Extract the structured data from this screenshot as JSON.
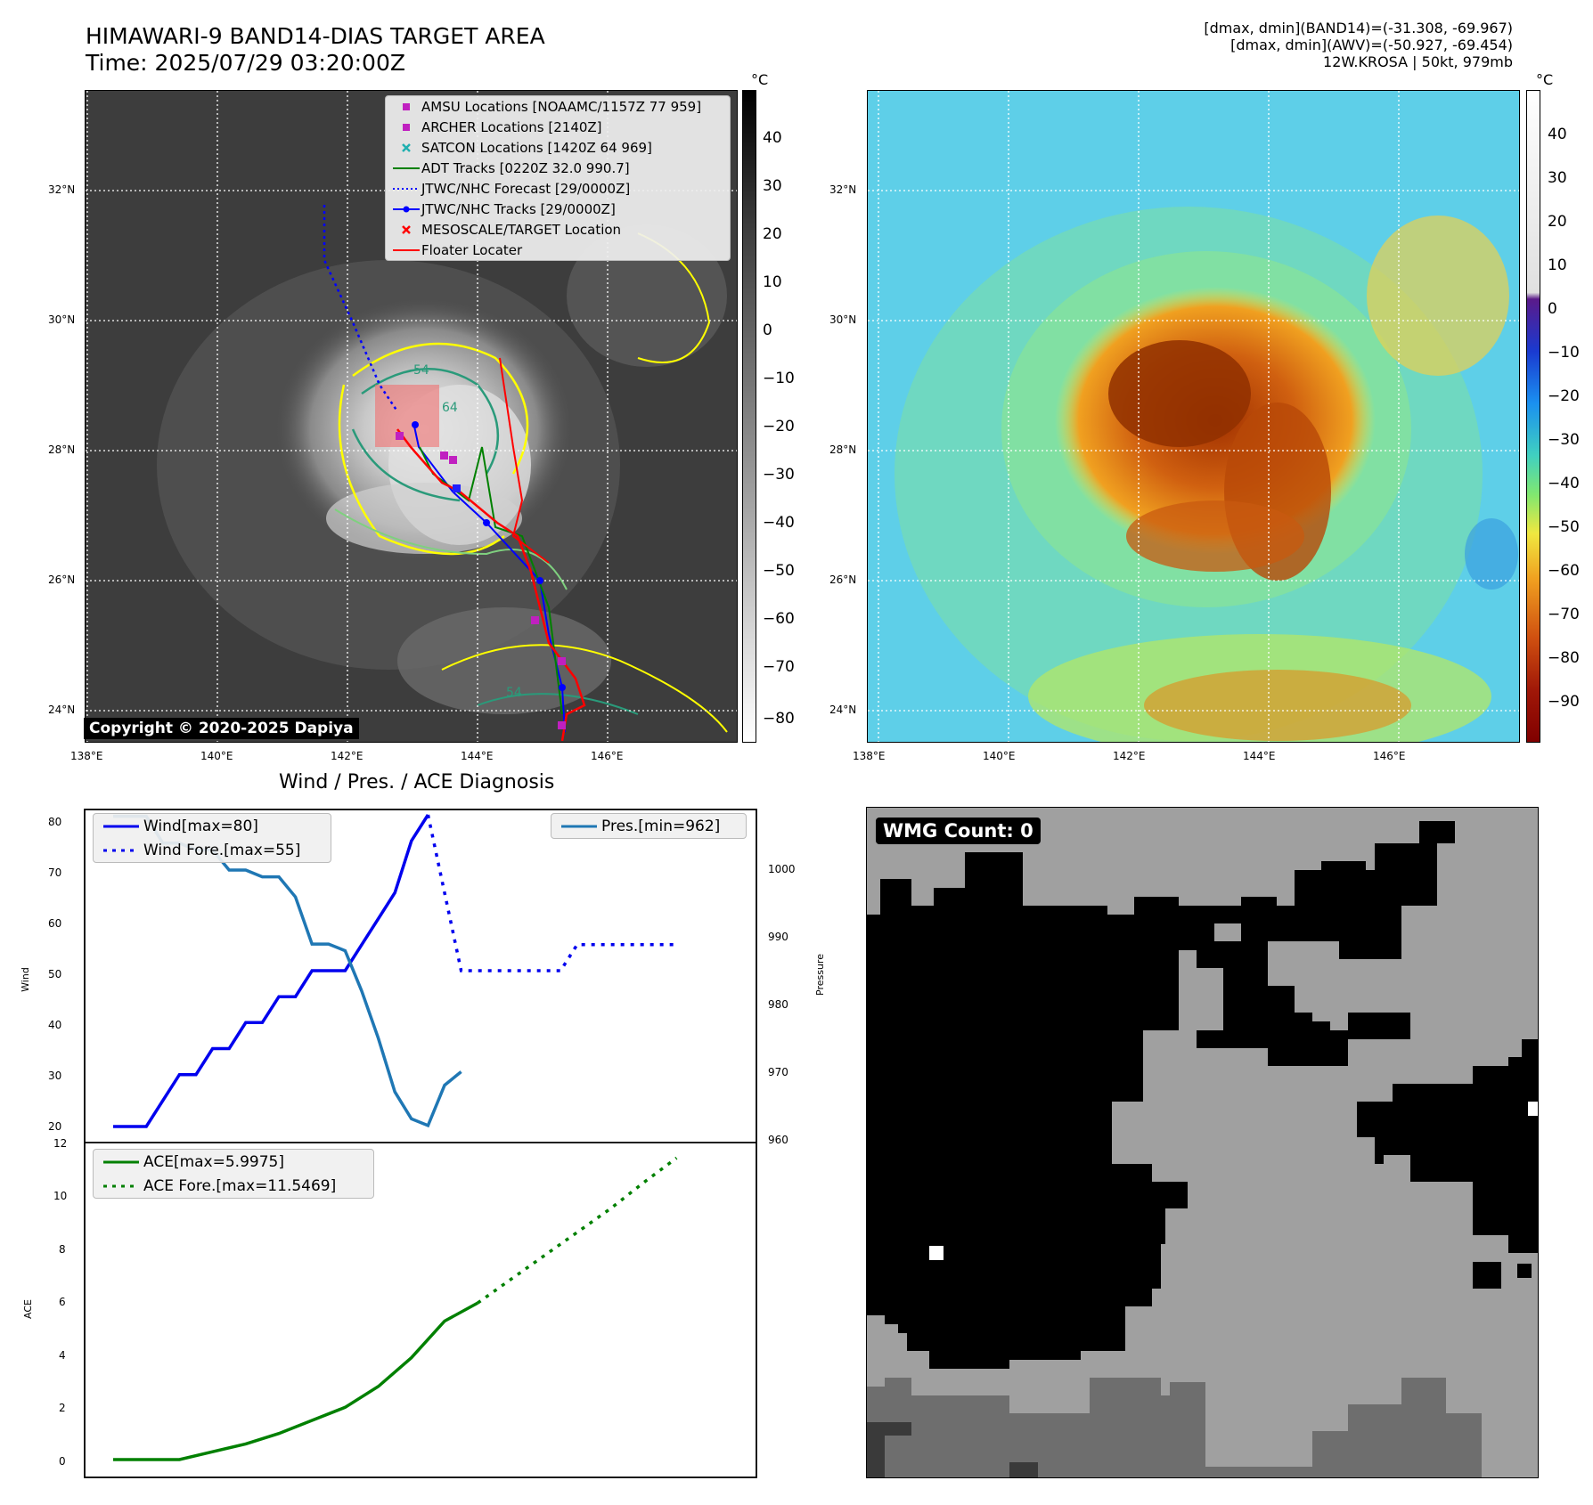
{
  "header": {
    "title_line1": "HIMAWARI-9 BAND14-DIAS TARGET AREA",
    "title_line2": "Time: 2025/07/29 03:20:00Z",
    "info_line1": "[dmax, dmin](BAND14)=(-31.308, -69.967)",
    "info_line2": "[dmax, dmin](AWV)=(-50.927, -69.454)",
    "info_line3": "12W.KROSA | 50kt, 979mb"
  },
  "map": {
    "lat_labels": [
      "32°N",
      "30°N",
      "28°N",
      "26°N",
      "24°N"
    ],
    "lon_labels": [
      "138°E",
      "140°E",
      "142°E",
      "144°E",
      "146°E"
    ],
    "colorbar_unit": "°C",
    "gray_colorbar_ticks": [
      "40",
      "30",
      "20",
      "10",
      "0",
      "−10",
      "−20",
      "−30",
      "−40",
      "−50",
      "−60",
      "−70",
      "−80"
    ],
    "color_colorbar_ticks": [
      "40",
      "30",
      "20",
      "10",
      "0",
      "−10",
      "−20",
      "−30",
      "−40",
      "−50",
      "−60",
      "−70",
      "−80",
      "−90"
    ],
    "contour_labels": [
      "54",
      "64",
      "64",
      "54"
    ],
    "copyright": "Copyright © 2020-2025 Dapiya",
    "legend": [
      {
        "label": "AMSU Locations [NOAAMC/1157Z 77 959]",
        "symbol": "square",
        "color": "#c020c0"
      },
      {
        "label": "ARCHER Locations [2140Z]",
        "symbol": "square",
        "color": "#c020c0"
      },
      {
        "label": "SATCON Locations [1420Z 64 969]",
        "symbol": "x",
        "color": "#20b0b0"
      },
      {
        "label": "ADT Tracks [0220Z 32.0 990.7]",
        "symbol": "line",
        "color": "#008000"
      },
      {
        "label": "JTWC/NHC Forecast [29/0000Z]",
        "symbol": "dotted",
        "color": "#0000ff"
      },
      {
        "label": "JTWC/NHC Tracks [29/0000Z]",
        "symbol": "line-dot",
        "color": "#0000ff"
      },
      {
        "label": "MESOSCALE/TARGET Location",
        "symbol": "x",
        "color": "#ff0000"
      },
      {
        "label": "Floater Locater",
        "symbol": "line",
        "color": "#ff0000"
      }
    ]
  },
  "diagnosis": {
    "title": "Wind / Pres. / ACE Diagnosis",
    "wind_label": "Wind",
    "pressure_label": "Pressure",
    "ace_label": "ACE",
    "wind_legend": "Wind[max=80]",
    "wind_fore_legend": "Wind Fore.[max=55]",
    "pres_legend": "Pres.[min=962]",
    "ace_legend": "ACE[max=5.9975]",
    "ace_fore_legend": "ACE Fore.[max=11.5469]",
    "wind_ticks": [
      "80",
      "70",
      "60",
      "50",
      "40",
      "30",
      "20"
    ],
    "pres_ticks": [
      "1000",
      "990",
      "980",
      "970",
      "960"
    ],
    "ace_ticks": [
      "12",
      "10",
      "8",
      "6",
      "4",
      "2",
      "0"
    ]
  },
  "wmg": {
    "label": "WMG Count: 0"
  },
  "chart_data": [
    {
      "type": "line",
      "title": "Wind / Pres. / ACE Diagnosis",
      "ylabel": "Wind",
      "ylim": [
        18,
        82
      ],
      "series": [
        {
          "name": "Wind[max=80]",
          "color": "#0000ee",
          "style": "solid",
          "x": [
            0,
            1,
            2,
            3,
            4,
            5,
            6,
            7,
            8,
            9,
            10,
            11,
            12,
            13,
            14,
            15,
            16,
            17,
            18,
            19
          ],
          "values": [
            20,
            20,
            20,
            25,
            30,
            30,
            35,
            35,
            40,
            40,
            45,
            45,
            50,
            50,
            50,
            55,
            60,
            65,
            75,
            80
          ]
        },
        {
          "name": "Wind Fore.[max=55]",
          "color": "#0000ee",
          "style": "dotted",
          "x": [
            19,
            21,
            22,
            23,
            24,
            25,
            26,
            27,
            28,
            29,
            30,
            31,
            32,
            33,
            34
          ],
          "values": [
            80,
            50,
            50,
            50,
            50,
            50,
            50,
            50,
            55,
            55,
            55,
            55,
            55,
            55,
            55
          ]
        }
      ]
    },
    {
      "type": "line",
      "ylabel": "Pressure",
      "ylim": [
        960,
        1008
      ],
      "series": [
        {
          "name": "Pres.[min=962]",
          "color": "#1f77b4",
          "style": "solid",
          "x": [
            0,
            1,
            2,
            3,
            4,
            5,
            6,
            7,
            8,
            9,
            10,
            11,
            12,
            13,
            14,
            15,
            16,
            17,
            18,
            19,
            20,
            21
          ],
          "values": [
            1008,
            1008,
            1008,
            1004,
            1004,
            1003,
            1003,
            1000,
            1000,
            999,
            999,
            996,
            989,
            989,
            988,
            982,
            975,
            967,
            963,
            962,
            968,
            970
          ]
        }
      ]
    },
    {
      "type": "line",
      "ylabel": "ACE",
      "ylim": [
        -0.5,
        12
      ],
      "series": [
        {
          "name": "ACE[max=5.9975]",
          "color": "#008000",
          "style": "solid",
          "x": [
            0,
            2,
            4,
            6,
            8,
            10,
            12,
            14,
            16,
            18,
            20,
            22
          ],
          "values": [
            0,
            0,
            0,
            0.3,
            0.6,
            1.0,
            1.5,
            2.0,
            2.8,
            3.9,
            5.3,
            5.9975
          ]
        },
        {
          "name": "ACE Fore.[max=11.5469]",
          "color": "#008000",
          "style": "dotted",
          "x": [
            22,
            24,
            26,
            28,
            30,
            32,
            34
          ],
          "values": [
            5.9975,
            6.9,
            7.8,
            8.7,
            9.6,
            10.6,
            11.5469
          ]
        }
      ]
    }
  ]
}
